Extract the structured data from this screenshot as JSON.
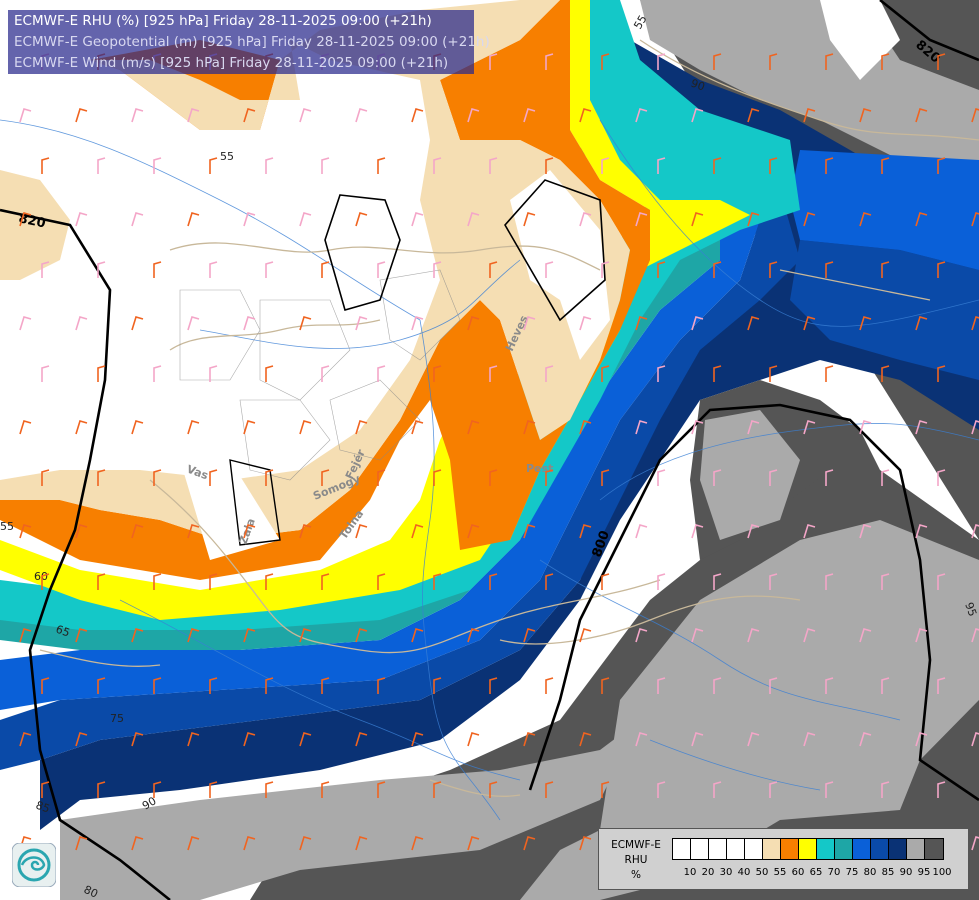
{
  "header": {
    "lines": [
      "ECMWF-E RHU (%) [925 hPa] Friday 28-11-2025 09:00 (+21h)",
      "ECMWF-E Geopotential (m) [925 hPa] Friday 28-11-2025 09:00 (+21h)",
      "ECMWF-E Wind (m/s) [925 hPa] Friday 28-11-2025 09:00 (+21h)"
    ],
    "active_color": "#ffffff",
    "inactive_color": "#d8d8f0"
  },
  "map": {
    "geopotential_labels": [
      "820",
      "800",
      "820"
    ],
    "rhu_contour_labels": [
      "55",
      "55",
      "55",
      "60",
      "65",
      "75",
      "85",
      "90",
      "80",
      "95",
      "90",
      "95"
    ],
    "place_labels": [
      "Heves",
      "Pest",
      "Somogy",
      "Fejér",
      "Tolna",
      "Vas",
      "Zala"
    ]
  },
  "legend": {
    "title_lines": [
      "ECMWF-E",
      "RHU",
      "%"
    ],
    "colors": [
      "#ffffff",
      "#ffffff",
      "#ffffff",
      "#ffffff",
      "#ffffff",
      "#f5deb3",
      "#f77f00",
      "#ffff00",
      "#14c8c8",
      "#1ea6a6",
      "#0a60d8",
      "#0a4aa8",
      "#0a3275",
      "#aaaaaa",
      "#555555"
    ],
    "tick_labels": [
      "10",
      "20",
      "30",
      "40",
      "50",
      "55",
      "60",
      "65",
      "70",
      "75",
      "80",
      "85",
      "90",
      "95",
      "100"
    ]
  },
  "logo": {
    "icon": "ecmwf-logo-icon"
  }
}
